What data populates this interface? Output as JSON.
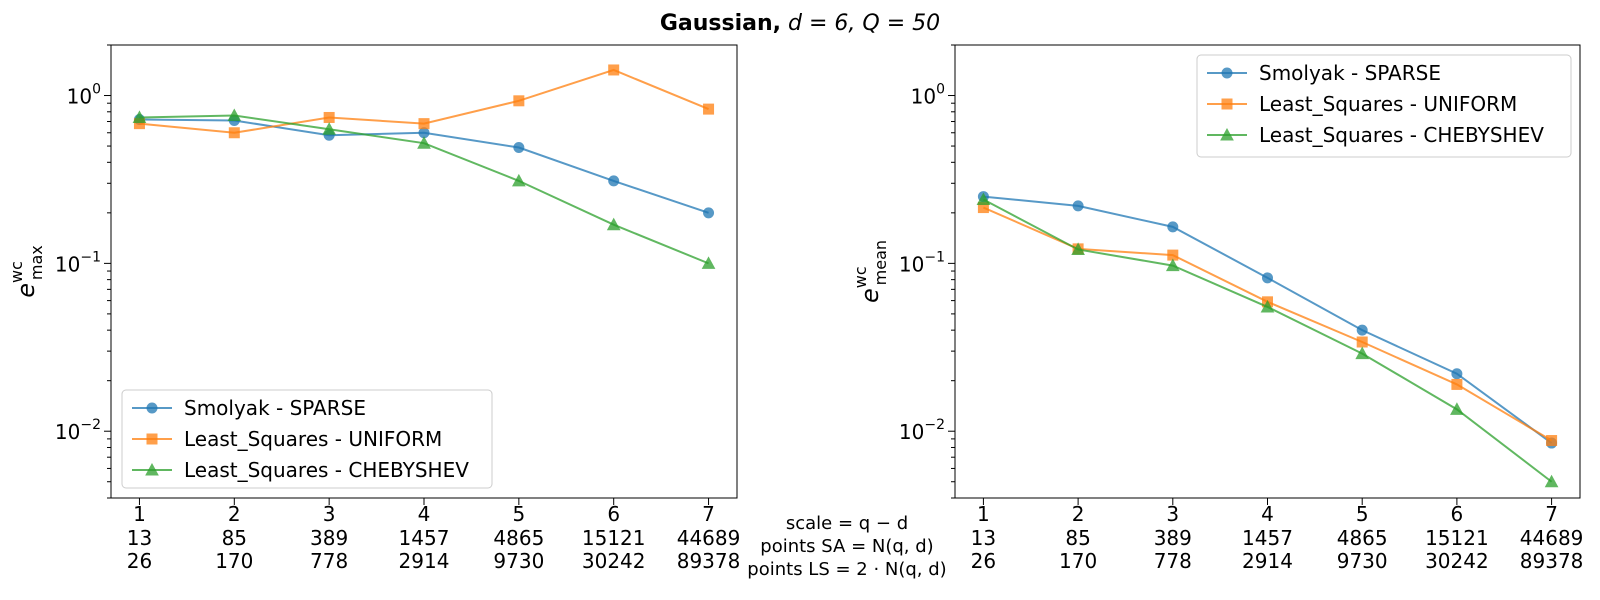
{
  "figure": {
    "title_bold": "Gaussian,",
    "title_rest": " d = 6, Q = 50"
  },
  "chart_data": [
    {
      "type": "line",
      "ylabel_base": "e",
      "ylabel_sup": "wc",
      "ylabel_sub": "max",
      "yscale": "log",
      "ylim": [
        0.004,
        2.0
      ],
      "yticks": [
        {
          "base": "10",
          "exp": "0"
        },
        {
          "base": "10",
          "exp": "−1"
        },
        {
          "base": "10",
          "exp": "−2"
        }
      ],
      "x": [
        1,
        2,
        3,
        4,
        5,
        6,
        7
      ],
      "xlim": [
        0.7,
        7.3
      ],
      "legend_position": "lower-left",
      "series": [
        {
          "name": "Smolyak - SPARSE",
          "color": "#1f77b4",
          "marker": "circle",
          "values": [
            0.72,
            0.71,
            0.58,
            0.6,
            0.49,
            0.31,
            0.2
          ]
        },
        {
          "name": "Least_Squares - UNIFORM",
          "color": "#ff7f0e",
          "marker": "square",
          "values": [
            0.68,
            0.6,
            0.74,
            0.68,
            0.93,
            1.42,
            0.83
          ]
        },
        {
          "name": "Least_Squares - CHEBYSHEV",
          "color": "#2ca02c",
          "marker": "triangle",
          "values": [
            0.74,
            0.76,
            0.63,
            0.52,
            0.31,
            0.17,
            0.1
          ]
        }
      ]
    },
    {
      "type": "line",
      "ylabel_base": "e",
      "ylabel_sup": "wc",
      "ylabel_sub": "mean",
      "yscale": "log",
      "ylim": [
        0.004,
        2.0
      ],
      "yticks": [
        {
          "base": "10",
          "exp": "0"
        },
        {
          "base": "10",
          "exp": "−1"
        },
        {
          "base": "10",
          "exp": "−2"
        }
      ],
      "x": [
        1,
        2,
        3,
        4,
        5,
        6,
        7
      ],
      "xlim": [
        0.7,
        7.3
      ],
      "legend_position": "upper-right",
      "series": [
        {
          "name": "Smolyak - SPARSE",
          "color": "#1f77b4",
          "marker": "circle",
          "values": [
            0.25,
            0.22,
            0.165,
            0.082,
            0.04,
            0.022,
            0.0085
          ]
        },
        {
          "name": "Least_Squares - UNIFORM",
          "color": "#ff7f0e",
          "marker": "square",
          "values": [
            0.215,
            0.122,
            0.112,
            0.059,
            0.034,
            0.019,
            0.0088
          ]
        },
        {
          "name": "Least_Squares - CHEBYSHEV",
          "color": "#2ca02c",
          "marker": "triangle",
          "values": [
            0.24,
            0.121,
            0.097,
            0.055,
            0.029,
            0.0135,
            0.005
          ]
        }
      ]
    }
  ],
  "xaxis": {
    "scale_label": "scale = q − d",
    "points_sa_label": "points SA = N(q, d)",
    "points_ls_label": "points LS = 2 · N(q, d)",
    "scale": [
      "1",
      "2",
      "3",
      "4",
      "5",
      "6",
      "7"
    ],
    "points_sa": [
      "13",
      "85",
      "389",
      "1457",
      "4865",
      "15121",
      "44689"
    ],
    "points_ls": [
      "26",
      "170",
      "778",
      "2914",
      "9730",
      "30242",
      "89378"
    ]
  }
}
